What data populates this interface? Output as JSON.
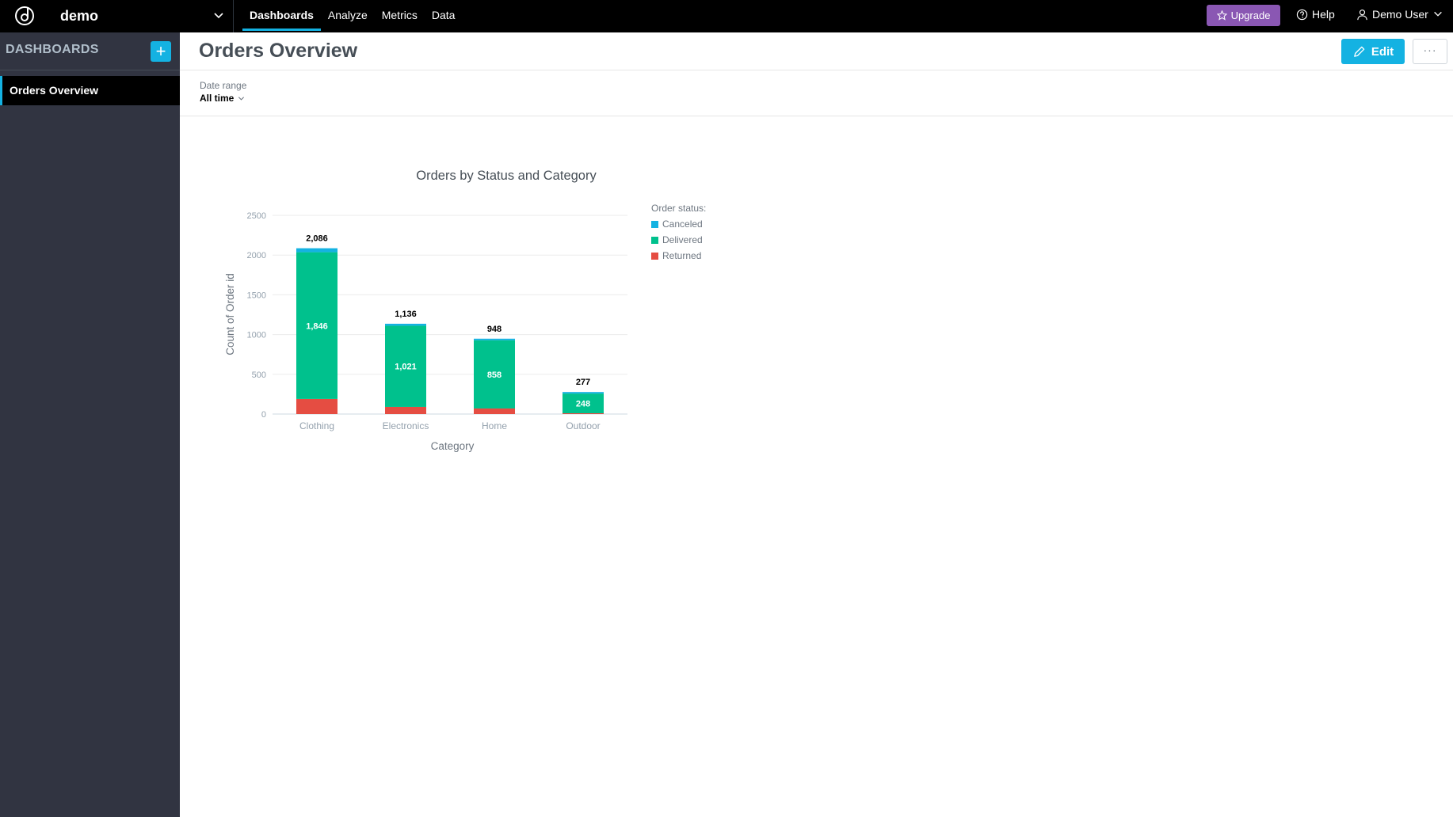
{
  "topbar": {
    "workspace": "demo",
    "nav": [
      {
        "label": "Dashboards",
        "active": true
      },
      {
        "label": "Analyze",
        "active": false
      },
      {
        "label": "Metrics",
        "active": false
      },
      {
        "label": "Data",
        "active": false
      }
    ],
    "upgrade_label": "Upgrade",
    "help_label": "Help",
    "user_label": "Demo User",
    "accent_color": "#14b2e2",
    "upgrade_color": "#8a57b3"
  },
  "sidebar": {
    "title": "DASHBOARDS",
    "add_label": "+",
    "items": [
      {
        "label": "Orders Overview",
        "active": true
      }
    ]
  },
  "main": {
    "title": "Orders Overview",
    "edit_label": "Edit",
    "more_label": "···",
    "filter": {
      "label": "Date range",
      "value": "All time"
    }
  },
  "chart_data": {
    "type": "bar",
    "stacked": true,
    "title": "Orders by Status and Category",
    "xlabel": "Category",
    "ylabel": "Count of Order id",
    "ylim": [
      0,
      2500
    ],
    "yticks": [
      "0",
      "500",
      "1000",
      "1500",
      "2000",
      "2500"
    ],
    "categories": [
      "Clothing",
      "Electronics",
      "Home",
      "Outdoor"
    ],
    "legend_title": "Order status:",
    "legend_position": "right",
    "grid": true,
    "series": [
      {
        "name": "Returned",
        "color": "#e54d42",
        "values": [
          190,
          90,
          70,
          10
        ]
      },
      {
        "name": "Delivered",
        "color": "#00c18d",
        "values": [
          1846,
          1021,
          858,
          248
        ],
        "labels": [
          "1,846",
          "1,021",
          "858",
          "248"
        ]
      },
      {
        "name": "Canceled",
        "color": "#14b2e2",
        "values": [
          50,
          25,
          20,
          19
        ]
      }
    ],
    "legend_order": [
      "Canceled",
      "Delivered",
      "Returned"
    ],
    "totals": [
      "2,086",
      "1,136",
      "948",
      "277"
    ],
    "total_values": [
      2086,
      1136,
      948,
      277
    ]
  }
}
